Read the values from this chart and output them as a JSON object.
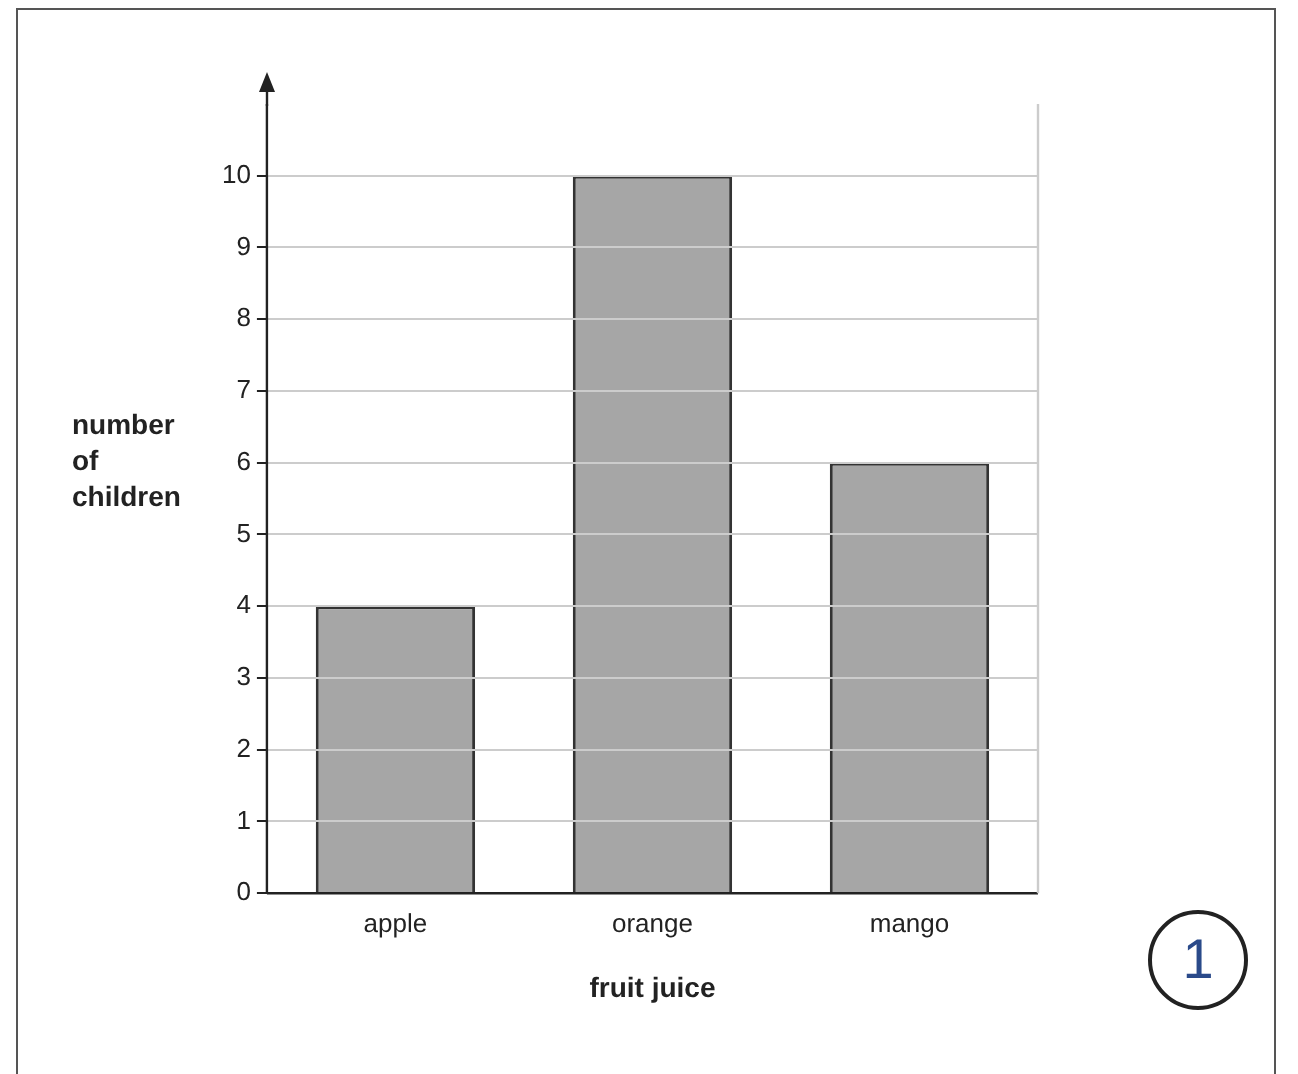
{
  "chart_data": {
    "type": "bar",
    "xlabel": "fruit juice",
    "ylabel": "number of children",
    "categories": [
      "apple",
      "orange",
      "mango"
    ],
    "values": [
      4,
      10,
      6
    ],
    "color": "#a6a6a6",
    "ylim": [
      0,
      11
    ],
    "yticks": [
      0,
      1,
      2,
      3,
      4,
      5,
      6,
      7,
      8,
      9,
      10
    ],
    "grid": "y",
    "annotations": [
      "1"
    ]
  }
}
